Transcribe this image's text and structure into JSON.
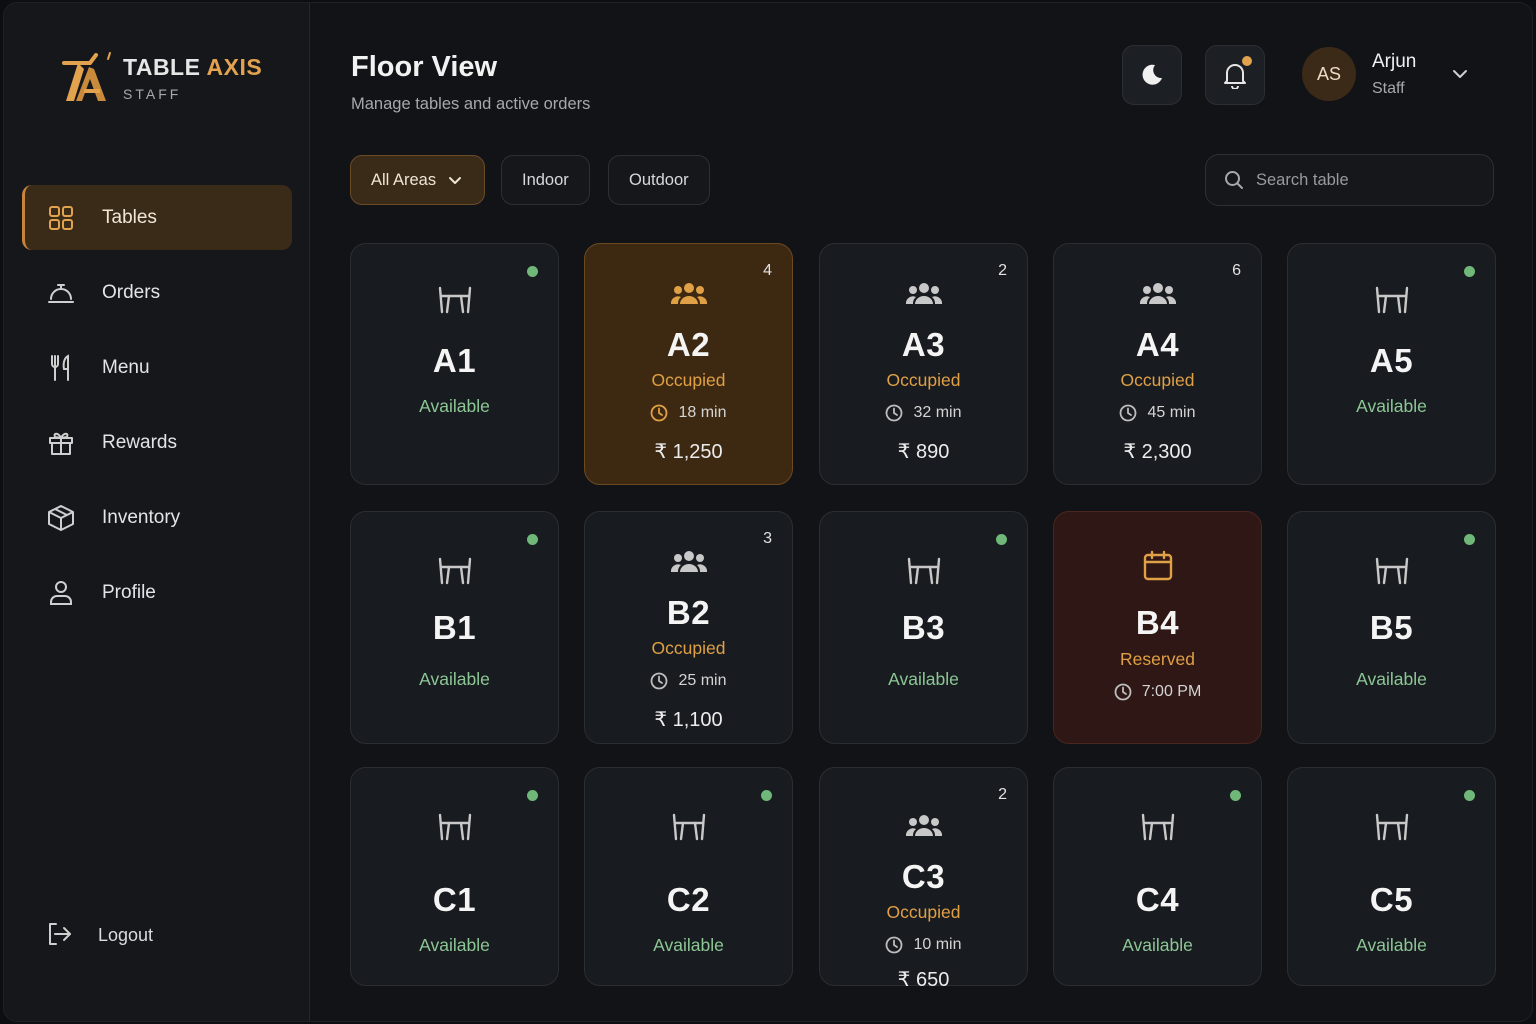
{
  "brand": {
    "name_part1": "TABLE ",
    "name_part2": "AXIS",
    "sub": "STAFF"
  },
  "nav": {
    "items": [
      {
        "label": "Tables",
        "icon": "grid-icon"
      },
      {
        "label": "Orders",
        "icon": "cloche-icon"
      },
      {
        "label": "Menu",
        "icon": "utensils-icon"
      },
      {
        "label": "Rewards",
        "icon": "gift-icon"
      },
      {
        "label": "Inventory",
        "icon": "box-icon"
      },
      {
        "label": "Profile",
        "icon": "user-icon"
      }
    ],
    "logout": "Logout"
  },
  "header": {
    "title": "Floor View",
    "subtitle": "Manage tables and active orders",
    "user": {
      "initials": "AS",
      "name": "Arjun",
      "role": "Staff"
    }
  },
  "filters": {
    "all": "All Areas",
    "indoor": "Indoor",
    "outdoor": "Outdoor"
  },
  "search": {
    "placeholder": "Search table"
  },
  "colors": {
    "accent": "#e2a24e",
    "available": "#8cc795",
    "occupied": "#e0a045",
    "reserved_bg": "#2e1714"
  },
  "tables": [
    {
      "name": "A1",
      "status": "Available"
    },
    {
      "name": "A2",
      "status": "Occupied",
      "guests": "4",
      "time": "18 min",
      "amount": "₹ 1,250"
    },
    {
      "name": "A3",
      "status": "Occupied",
      "guests": "2",
      "time": "32 min",
      "amount": "₹ 890"
    },
    {
      "name": "A4",
      "status": "Occupied",
      "guests": "6",
      "time": "45 min",
      "amount": "₹ 2,300"
    },
    {
      "name": "A5",
      "status": "Available"
    },
    {
      "name": "B1",
      "status": "Available"
    },
    {
      "name": "B2",
      "status": "Occupied",
      "guests": "3",
      "time": "25 min",
      "amount": "₹ 1,100"
    },
    {
      "name": "B3",
      "status": "Available"
    },
    {
      "name": "B4",
      "status": "Reserved",
      "time": "7:00 PM"
    },
    {
      "name": "B5",
      "status": "Available"
    },
    {
      "name": "C1",
      "status": "Available"
    },
    {
      "name": "C2",
      "status": "Available"
    },
    {
      "name": "C3",
      "status": "Occupied",
      "guests": "2",
      "time": "10 min",
      "amount": "₹ 650"
    },
    {
      "name": "C4",
      "status": "Available"
    },
    {
      "name": "C5",
      "status": "Available"
    }
  ]
}
